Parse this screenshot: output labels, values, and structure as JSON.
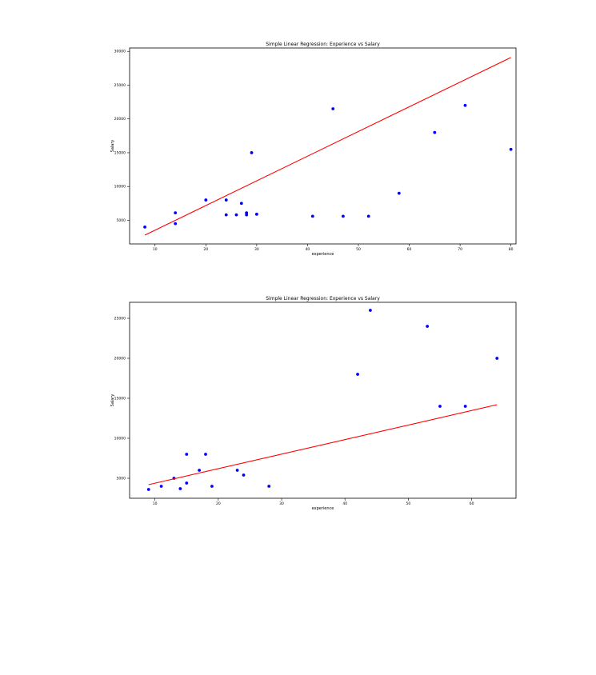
{
  "chart_data": [
    {
      "type": "scatter",
      "title": "Simple Linear Regression: Experience vs Salary",
      "xlabel": "experience",
      "ylabel": "Salary",
      "xlim": [
        5,
        81
      ],
      "ylim": [
        1500,
        30500
      ],
      "xticks": [
        10,
        20,
        30,
        40,
        50,
        60,
        70,
        80
      ],
      "yticks": [
        5000,
        10000,
        15000,
        20000,
        25000,
        30000
      ],
      "series": [
        {
          "kind": "scatter",
          "color": "#0000ff",
          "x": [
            8,
            14,
            14,
            20,
            24,
            24,
            26,
            27,
            28,
            28,
            29,
            30,
            41,
            45,
            47,
            52,
            58,
            65,
            71,
            80
          ],
          "y": [
            4000,
            4500,
            6100,
            8000,
            8000,
            5800,
            5800,
            7500,
            5800,
            6100,
            15000,
            5900,
            5600,
            21500,
            5600,
            5600,
            9000,
            18000,
            22000,
            15500
          ]
        },
        {
          "kind": "line",
          "color": "#ff0000",
          "x": [
            8,
            80
          ],
          "y": [
            2800,
            29100
          ]
        }
      ]
    },
    {
      "type": "scatter",
      "title": "Simple Linear Regression: Experience vs Salary",
      "xlabel": "experience",
      "ylabel": "Salary",
      "xlim": [
        6,
        67
      ],
      "ylim": [
        2500,
        27000
      ],
      "xticks": [
        10,
        20,
        30,
        40,
        50,
        60
      ],
      "yticks": [
        5000,
        10000,
        15000,
        20000,
        25000
      ],
      "series": [
        {
          "kind": "scatter",
          "color": "#0000ff",
          "x": [
            9,
            11,
            13,
            14,
            15,
            15,
            17,
            18,
            19,
            23,
            24,
            28,
            42,
            44,
            53,
            55,
            59,
            64
          ],
          "y": [
            3600,
            4000,
            5000,
            3700,
            4400,
            8000,
            6000,
            8000,
            4000,
            6000,
            5400,
            4000,
            18000,
            26000,
            24000,
            14000,
            14000,
            20000
          ]
        },
        {
          "kind": "line",
          "color": "#ff0000",
          "x": [
            9,
            64
          ],
          "y": [
            4200,
            14200
          ]
        }
      ]
    }
  ]
}
